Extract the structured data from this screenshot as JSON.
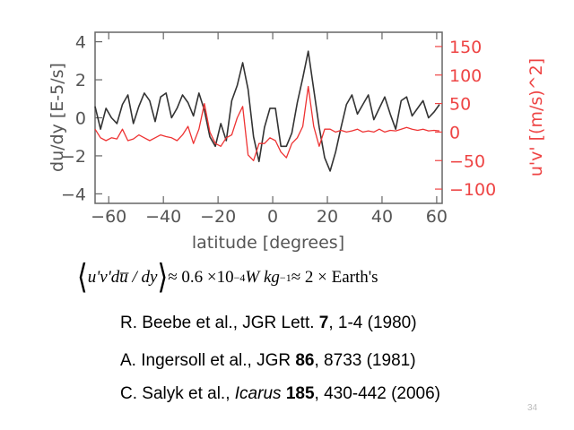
{
  "chart_data": {
    "type": "line",
    "xlabel": "latitude [degrees]",
    "ylabel_left": "du/dy [E-5/s]",
    "ylabel_right": "u'v' [(m/s)^2]",
    "xlim": [
      -65,
      62
    ],
    "ylim_left": [
      -4.5,
      4.5
    ],
    "ylim_right": [
      -125,
      175
    ],
    "x_ticks": [
      -60,
      -40,
      -20,
      0,
      20,
      40,
      60
    ],
    "x_tick_labels": [
      "−60",
      "−40",
      "−20",
      "0",
      "20",
      "40",
      "60"
    ],
    "y_left_ticks": [
      -4,
      -2,
      0,
      2,
      4
    ],
    "y_left_tick_labels": [
      "−4",
      "−2",
      "0",
      "2",
      "4"
    ],
    "y_right_ticks": [
      -100,
      -50,
      0,
      50,
      100,
      150
    ],
    "y_right_tick_labels": [
      "−100",
      "−50",
      "0",
      "50",
      "100",
      "150"
    ],
    "series": [
      {
        "name": "du/dy",
        "axis": "left",
        "color": "#333333",
        "x": [
          -65,
          -63,
          -61,
          -59,
          -57,
          -55,
          -53,
          -51,
          -49,
          -47,
          -45,
          -43,
          -41,
          -39,
          -37,
          -35,
          -33,
          -31,
          -29,
          -27,
          -25,
          -23,
          -21,
          -19,
          -17,
          -15,
          -13,
          -11,
          -9,
          -7,
          -5,
          -3,
          -1,
          1,
          3,
          5,
          7,
          9,
          11,
          13,
          15,
          17,
          19,
          21,
          23,
          25,
          27,
          29,
          31,
          33,
          35,
          37,
          39,
          41,
          43,
          45,
          47,
          49,
          51,
          53,
          55,
          57,
          59,
          61
        ],
        "values": [
          0.6,
          -0.6,
          0.5,
          0.0,
          -0.3,
          0.7,
          1.2,
          -0.3,
          0.6,
          1.3,
          0.9,
          -0.2,
          1.1,
          1.3,
          0.0,
          0.5,
          1.2,
          0.8,
          0.1,
          1.3,
          0.4,
          -1.0,
          -1.5,
          -0.3,
          -1.2,
          0.9,
          1.7,
          2.9,
          1.5,
          -1.0,
          -2.3,
          -0.5,
          0.5,
          0.5,
          -1.5,
          -1.5,
          -0.8,
          0.8,
          2.1,
          3.5,
          1.5,
          -0.5,
          -2.1,
          -2.8,
          -1.8,
          -0.5,
          0.7,
          1.2,
          0.2,
          0.7,
          1.2,
          -0.1,
          0.5,
          1.1,
          0.2,
          -0.6,
          0.9,
          1.1,
          0.1,
          0.5,
          0.9,
          0.0,
          0.3,
          0.7
        ]
      },
      {
        "name": "u'v'",
        "axis": "right",
        "color": "#ee3333",
        "x": [
          -65,
          -63,
          -61,
          -59,
          -57,
          -55,
          -53,
          -51,
          -49,
          -47,
          -45,
          -43,
          -41,
          -39,
          -37,
          -35,
          -33,
          -31,
          -29,
          -27,
          -25,
          -23,
          -21,
          -19,
          -17,
          -15,
          -13,
          -11,
          -9,
          -7,
          -5,
          -3,
          -1,
          1,
          3,
          5,
          7,
          9,
          11,
          13,
          15,
          17,
          19,
          21,
          23,
          25,
          27,
          29,
          31,
          33,
          35,
          37,
          39,
          41,
          43,
          45,
          47,
          49,
          51,
          53,
          55,
          57,
          59,
          61
        ],
        "values": [
          5,
          -10,
          -15,
          -10,
          -12,
          5,
          -15,
          -12,
          -5,
          -10,
          -15,
          -10,
          -5,
          -8,
          -10,
          -15,
          -5,
          10,
          -20,
          5,
          50,
          0,
          -20,
          -25,
          -10,
          -5,
          25,
          45,
          -40,
          -50,
          -20,
          -20,
          -10,
          -15,
          -35,
          -45,
          -20,
          -10,
          10,
          80,
          10,
          -25,
          5,
          5,
          0,
          3,
          0,
          2,
          5,
          0,
          2,
          0,
          5,
          0,
          3,
          2,
          5,
          8,
          5,
          3,
          5,
          2,
          3,
          2
        ]
      }
    ]
  },
  "equation": {
    "expr_open": "⟨",
    "expr_body": "u'v'du̅ / dy",
    "expr_close": "⟩",
    "approx1": " ≈ 0.6 ×10",
    "exp1": "−4",
    "unit_w": " W",
    "unit_kg": " kg",
    "exp2": "−1",
    "approx2": " ≈ 2 × Earth's"
  },
  "references": [
    {
      "authors": "R. Beebe et al., JGR Lett. ",
      "volume": "7",
      "rest": ", 1-4 (1980)"
    },
    {
      "authors": "A.  Ingersoll et al., JGR ",
      "volume": "86",
      "rest": ", 8733 (1981)"
    },
    {
      "authors": "C. Salyk et al., ",
      "journal": "Icarus",
      "volume": "185",
      "rest": ", 430-442 (2006)"
    }
  ],
  "page_number": "34"
}
